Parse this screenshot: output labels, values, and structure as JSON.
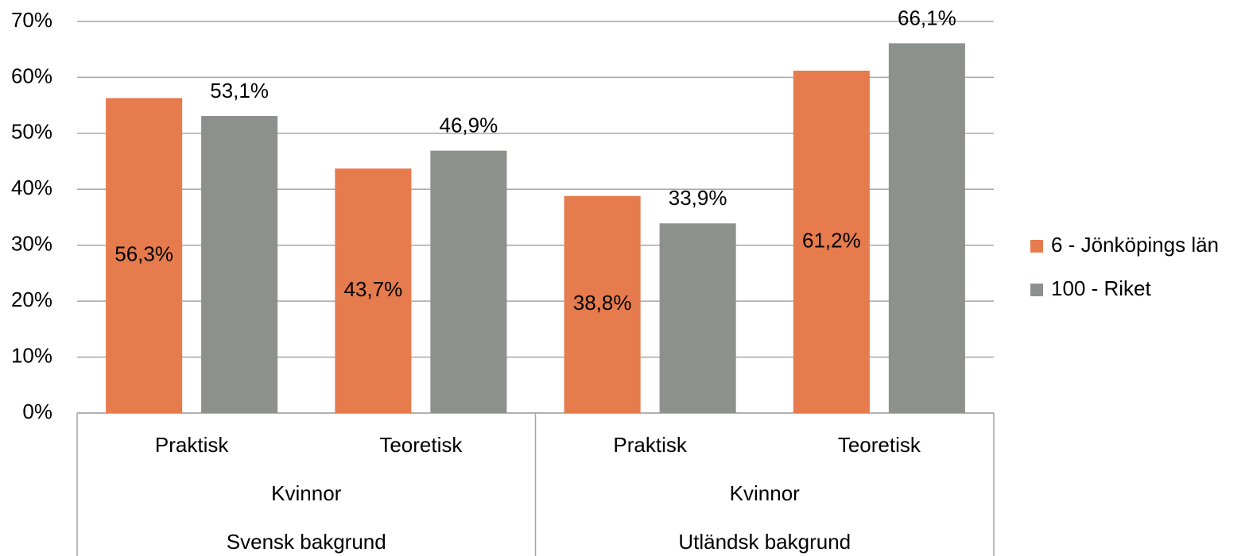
{
  "chart_data": {
    "type": "bar",
    "categories": [
      "Praktisk",
      "Teoretisk",
      "Praktisk",
      "Teoretisk"
    ],
    "category_levels": [
      [
        "Kvinnor",
        "Kvinnor"
      ],
      [
        "Svensk bakgrund",
        "Utländsk bakgrund"
      ]
    ],
    "series": [
      {
        "name": "6 - Jönköpings län",
        "color": "#e67b4d",
        "values": [
          56.3,
          43.7,
          38.8,
          61.2
        ],
        "value_labels": [
          "56,3%",
          "43,7%",
          "38,8%",
          "61,2%"
        ],
        "label_position": "center"
      },
      {
        "name": "100 - Riket",
        "color": "#8c918e",
        "values": [
          53.1,
          46.9,
          33.9,
          66.1
        ],
        "value_labels": [
          "53,1%",
          "46,9%",
          "33,9%",
          "66,1%"
        ],
        "label_position": "outside"
      }
    ],
    "ylim": [
      0,
      70
    ],
    "yticks": [
      {
        "value": 0,
        "label": "0%"
      },
      {
        "value": 10,
        "label": "10%"
      },
      {
        "value": 20,
        "label": "20%"
      },
      {
        "value": 30,
        "label": "30%"
      },
      {
        "value": 40,
        "label": "40%"
      },
      {
        "value": 50,
        "label": "50%"
      },
      {
        "value": 60,
        "label": "60%"
      },
      {
        "value": 70,
        "label": "70%"
      }
    ],
    "grid": true,
    "legend": "right"
  }
}
